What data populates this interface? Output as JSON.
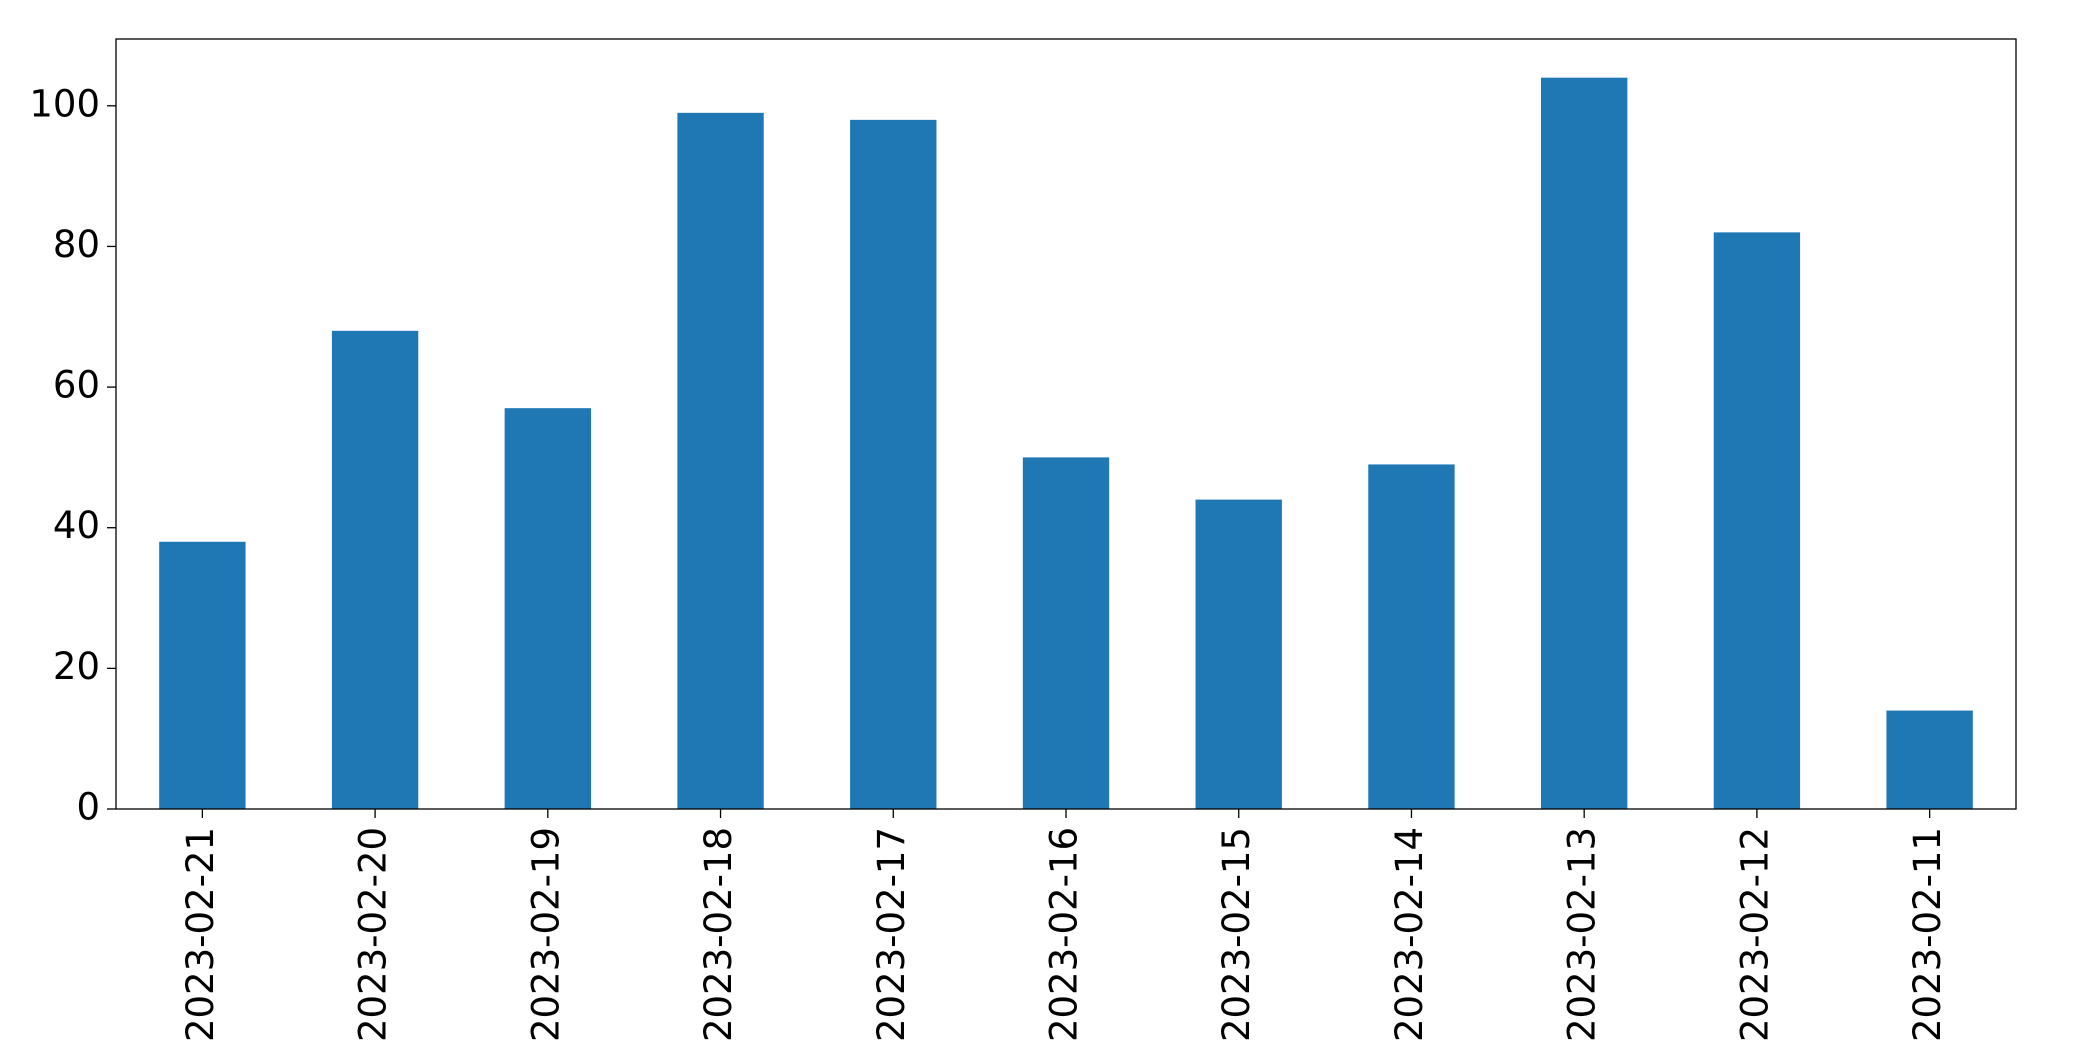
{
  "chart_data": {
    "type": "bar",
    "categories": [
      "2023-02-21",
      "2023-02-20",
      "2023-02-19",
      "2023-02-18",
      "2023-02-17",
      "2023-02-16",
      "2023-02-15",
      "2023-02-14",
      "2023-02-13",
      "2023-02-12",
      "2023-02-11"
    ],
    "values": [
      38,
      68,
      57,
      99,
      98,
      50,
      44,
      49,
      104,
      82,
      14
    ],
    "color": "#1f77b4",
    "ylim": [
      0,
      109.5
    ],
    "yticks": [
      0,
      20,
      40,
      60,
      80,
      100
    ],
    "grid": false
  }
}
